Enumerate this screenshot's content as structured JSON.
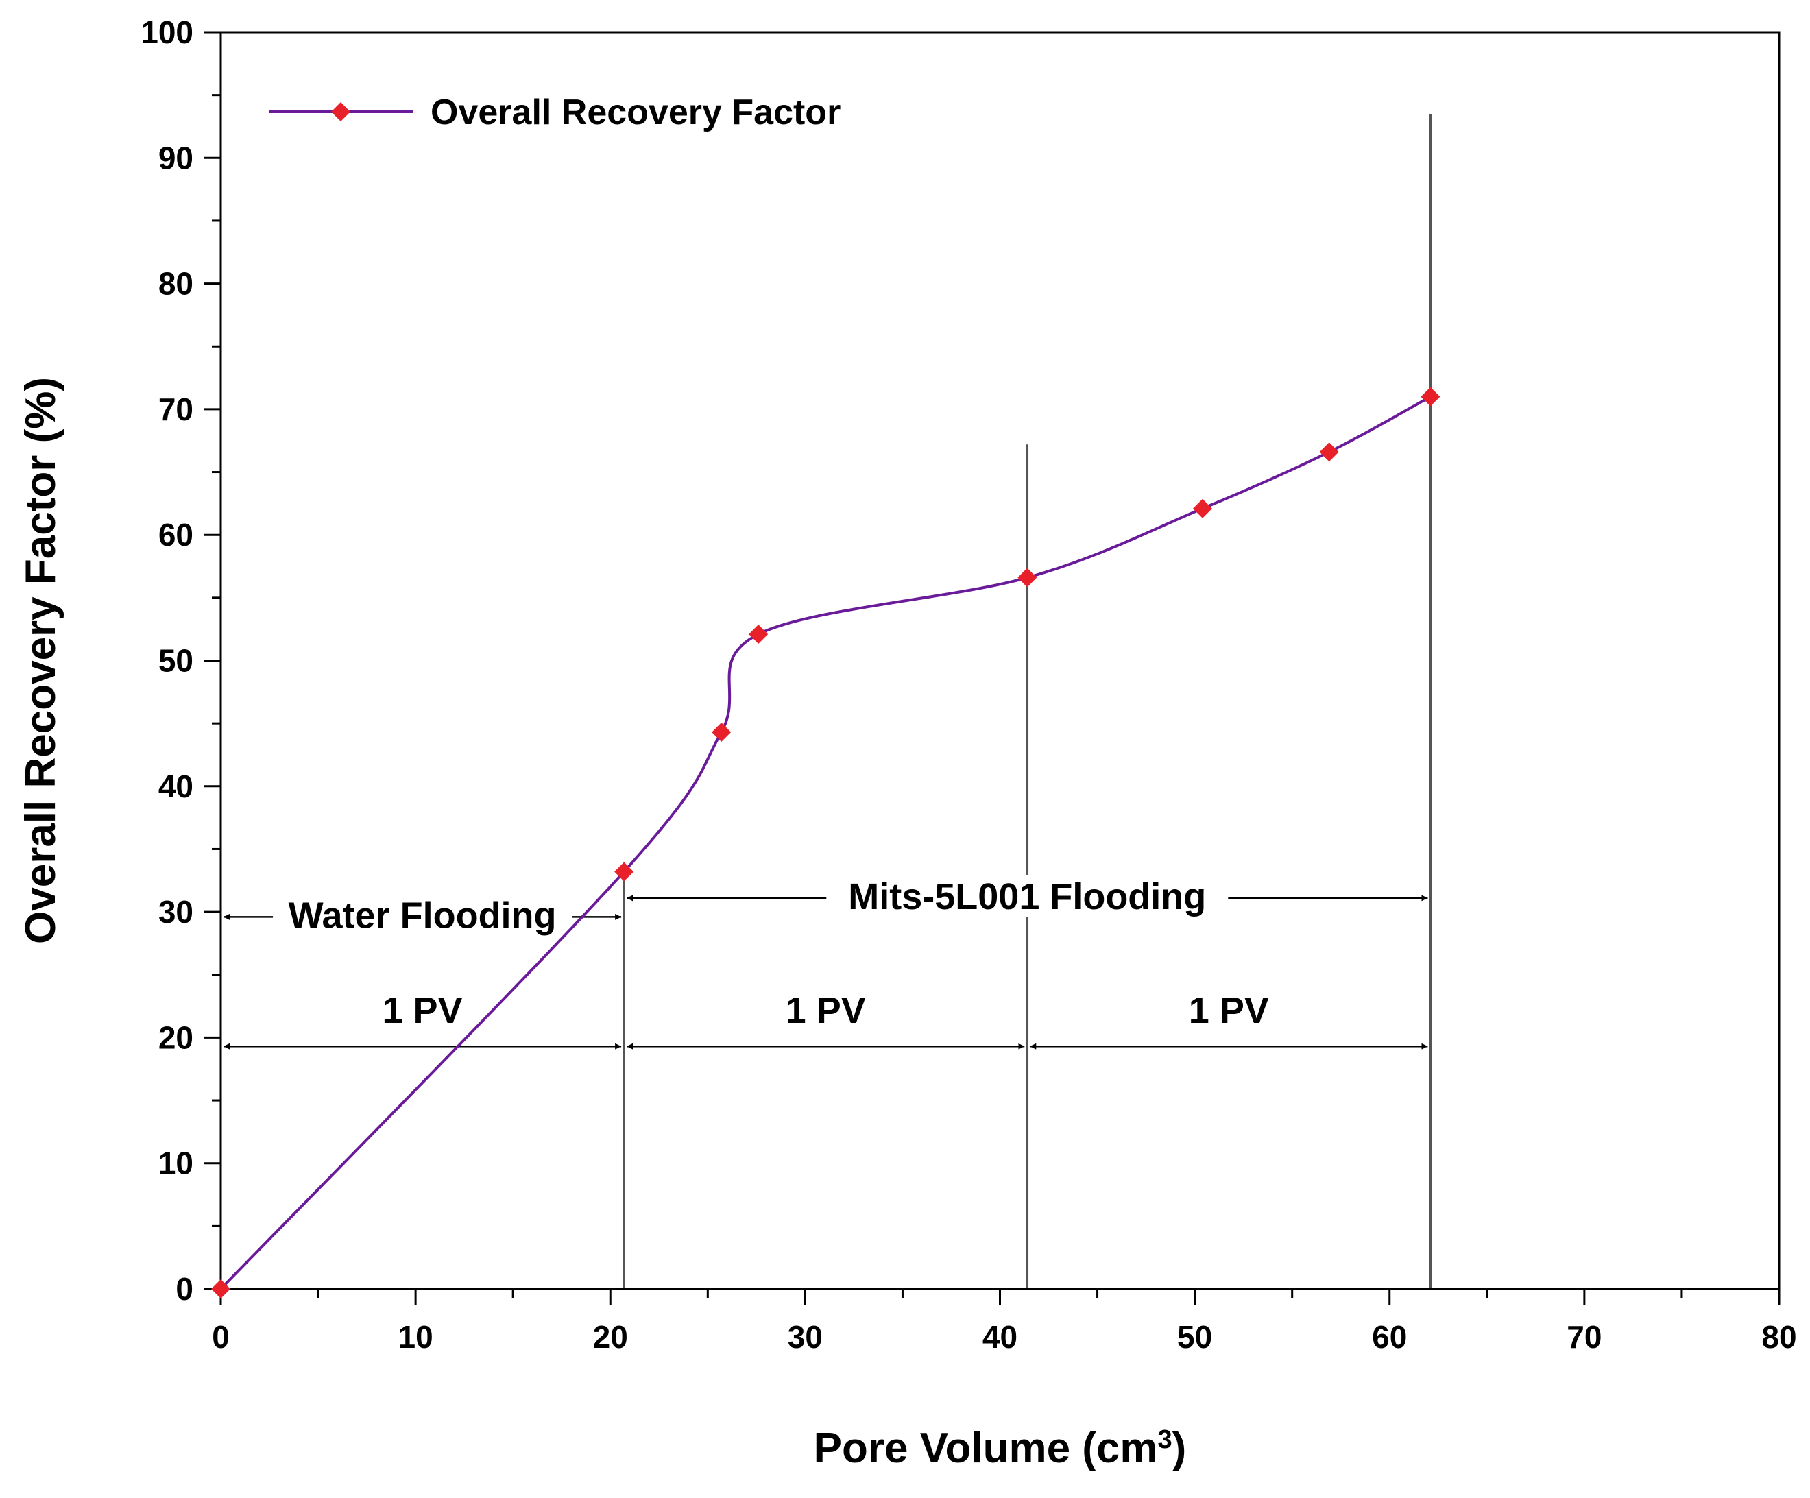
{
  "chart_data": {
    "type": "line",
    "title": "",
    "xlabel": "Pore Volume (cm",
    "xlabel_sup": "3",
    "xlabel_end": ")",
    "ylabel": "Overall Recovery Factor (%)",
    "xlim": [
      0,
      80
    ],
    "ylim": [
      0,
      100
    ],
    "x_ticks": [
      "0",
      "10",
      "20",
      "30",
      "40",
      "50",
      "60",
      "70",
      "80"
    ],
    "y_ticks": [
      "0",
      "10",
      "20",
      "30",
      "40",
      "50",
      "60",
      "70",
      "80",
      "90",
      "100"
    ],
    "grid": false,
    "legend_position": "top-left",
    "series": [
      {
        "name": "Overall Recovery Factor",
        "color": "#6a1b9a",
        "marker_color": "#e8202a",
        "marker": "diamond",
        "x": [
          0,
          20.7,
          25.7,
          27.6,
          41.4,
          50.4,
          56.9,
          62.1
        ],
        "y": [
          0,
          33.2,
          44.3,
          52.1,
          56.6,
          62.1,
          66.6,
          71.0
        ]
      }
    ],
    "vertical_lines": [
      {
        "x": 20.7,
        "y_top": 33.2
      },
      {
        "x": 41.4,
        "y_top": 67.2
      },
      {
        "x": 62.1,
        "y_top": 93.5
      }
    ],
    "annotations": [
      {
        "label": "Water Flooding",
        "x_start": 0,
        "x_end": 20.7,
        "y": 29.6
      },
      {
        "label": "Mits-5L001 Flooding",
        "x_start": 20.7,
        "x_end": 62.1,
        "y": 31.1
      },
      {
        "label": "1 PV",
        "x_start": 0,
        "x_end": 20.7,
        "y": 19.3
      },
      {
        "label": "1 PV",
        "x_start": 20.7,
        "x_end": 41.4,
        "y": 19.3
      },
      {
        "label": "1 PV",
        "x_start": 41.4,
        "x_end": 62.1,
        "y": 19.3
      }
    ]
  }
}
